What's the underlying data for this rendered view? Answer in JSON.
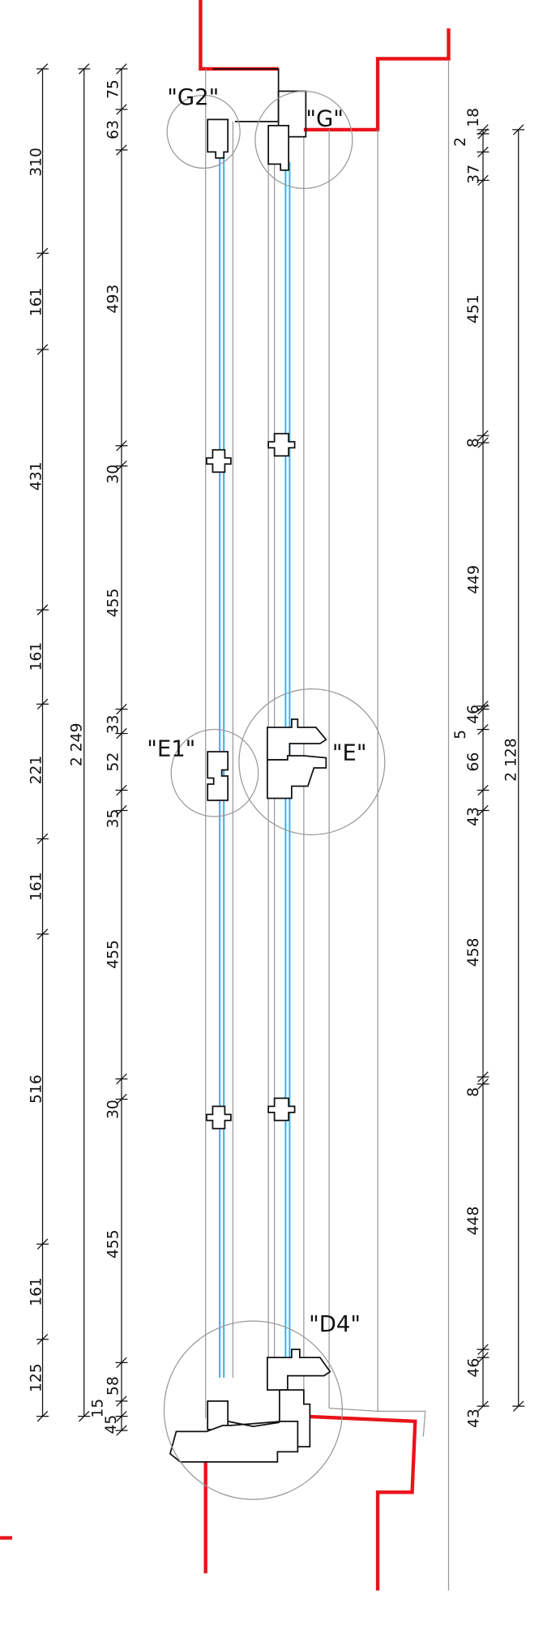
{
  "callouts": [
    "\"G2\"",
    "\"G\"",
    "\"E1\"",
    "\"E\"",
    "\"D4\""
  ],
  "dimensions": {
    "chain_1": [
      310,
      161,
      431,
      161,
      221,
      161,
      516,
      161,
      125
    ],
    "overall_left": "2 249",
    "chain_2": [
      75,
      63,
      493,
      30,
      455,
      33,
      52,
      35,
      455,
      30,
      455,
      58,
      15,
      45
    ],
    "chain_3": [
      2,
      18,
      37,
      451,
      8,
      449,
      5,
      46,
      66,
      43,
      458,
      8,
      448,
      46,
      43
    ],
    "overall_right": "2 128"
  }
}
